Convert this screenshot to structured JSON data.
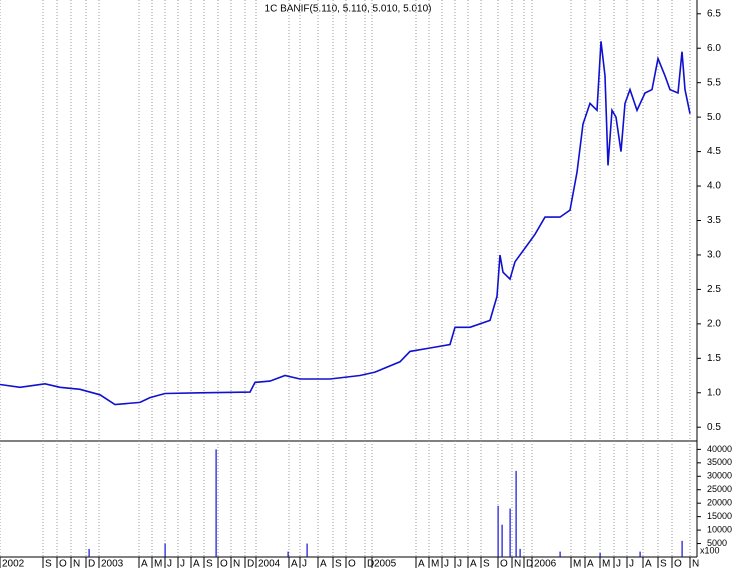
{
  "chart_data": [
    {
      "type": "line",
      "title": "1C BANIF(5.110, 5.110, 5.010, 5.010)",
      "color": "#1010d0",
      "xgrid": true,
      "xlim": [
        0,
        697
      ],
      "ylim": [
        0.3,
        6.7
      ],
      "xticks": [
        {
          "value": 0,
          "label": "2002"
        },
        {
          "value": 43,
          "label": "S"
        },
        {
          "value": 57,
          "label": "O"
        },
        {
          "value": 71,
          "label": "N"
        },
        {
          "value": 86,
          "label": "D"
        },
        {
          "value": 99,
          "label": "2003"
        },
        {
          "value": 139,
          "label": "A"
        },
        {
          "value": 152,
          "label": "M"
        },
        {
          "value": 165,
          "label": "J"
        },
        {
          "value": 178,
          "label": "J"
        },
        {
          "value": 191,
          "label": "A"
        },
        {
          "value": 204,
          "label": "S"
        },
        {
          "value": 218,
          "label": "O"
        },
        {
          "value": 231,
          "label": "N"
        },
        {
          "value": 245,
          "label": "D"
        },
        {
          "value": 256,
          "label": "2004"
        },
        {
          "value": 289,
          "label": "A"
        },
        {
          "value": 300,
          "label": "J"
        },
        {
          "value": 318,
          "label": "A"
        },
        {
          "value": 333,
          "label": "S"
        },
        {
          "value": 346,
          "label": "O"
        },
        {
          "value": 365,
          "label": "D"
        },
        {
          "value": 372,
          "label": "2005"
        },
        {
          "value": 416,
          "label": "A"
        },
        {
          "value": 429,
          "label": "M"
        },
        {
          "value": 442,
          "label": "J"
        },
        {
          "value": 455,
          "label": "J"
        },
        {
          "value": 468,
          "label": "A"
        },
        {
          "value": 481,
          "label": "S"
        },
        {
          "value": 498,
          "label": "O"
        },
        {
          "value": 512,
          "label": "N"
        },
        {
          "value": 524,
          "label": "D"
        },
        {
          "value": 532,
          "label": "2006"
        },
        {
          "value": 571,
          "label": "M"
        },
        {
          "value": 585,
          "label": "A"
        },
        {
          "value": 600,
          "label": "M"
        },
        {
          "value": 614,
          "label": "J"
        },
        {
          "value": 627,
          "label": "J"
        },
        {
          "value": 643,
          "label": "A"
        },
        {
          "value": 658,
          "label": "S"
        },
        {
          "value": 672,
          "label": "O"
        },
        {
          "value": 690,
          "label": "N"
        }
      ],
      "yticks": [
        0.5,
        {
          "value": 1,
          "label": "1.0"
        },
        1.5,
        {
          "value": 2,
          "label": "2.0"
        },
        2.5,
        {
          "value": 3,
          "label": "3.0"
        },
        3.5,
        {
          "value": 4,
          "label": "4.0"
        },
        4.5,
        {
          "value": 5,
          "label": "5.0"
        },
        5.5,
        {
          "value": 6,
          "label": "6.0"
        },
        6.5
      ],
      "x": [
        0,
        20,
        45,
        60,
        80,
        100,
        115,
        140,
        150,
        165,
        200,
        250,
        255,
        270,
        285,
        300,
        330,
        360,
        375,
        400,
        410,
        430,
        450,
        455,
        470,
        490,
        497,
        500,
        503,
        510,
        515,
        525,
        535,
        545,
        560,
        570,
        577,
        583,
        590,
        597,
        601,
        605,
        608,
        612,
        616,
        621,
        625,
        630,
        637,
        645,
        652,
        658,
        665,
        670,
        678,
        682,
        685,
        690
      ],
      "values": [
        1.12,
        1.08,
        1.13,
        1.08,
        1.05,
        0.97,
        0.83,
        0.86,
        0.93,
        0.99,
        1.0,
        1.01,
        1.15,
        1.17,
        1.25,
        1.2,
        1.2,
        1.25,
        1.3,
        1.45,
        1.6,
        1.65,
        1.7,
        1.95,
        1.95,
        2.05,
        2.4,
        3.0,
        2.75,
        2.65,
        2.9,
        3.1,
        3.3,
        3.55,
        3.55,
        3.65,
        4.2,
        4.9,
        5.2,
        5.1,
        6.1,
        5.6,
        4.3,
        5.1,
        5.0,
        4.5,
        5.2,
        5.4,
        5.1,
        5.35,
        5.4,
        5.85,
        5.6,
        5.4,
        5.35,
        5.95,
        5.4,
        5.05
      ]
    },
    {
      "type": "bar",
      "color": "#1010d0",
      "unit_label": "x100",
      "xlim": [
        0,
        697
      ],
      "ylim": [
        0,
        42000
      ],
      "yticks": [
        5000,
        10000,
        15000,
        20000,
        25000,
        30000,
        35000,
        40000
      ],
      "x": [
        89,
        165,
        216,
        288,
        307,
        498,
        502,
        510,
        516,
        520,
        560,
        600,
        640,
        682
      ],
      "values": [
        3000,
        5000,
        40000,
        2000,
        5000,
        19000,
        12000,
        18000,
        32000,
        3000,
        2000,
        1500,
        2000,
        6000
      ]
    }
  ]
}
